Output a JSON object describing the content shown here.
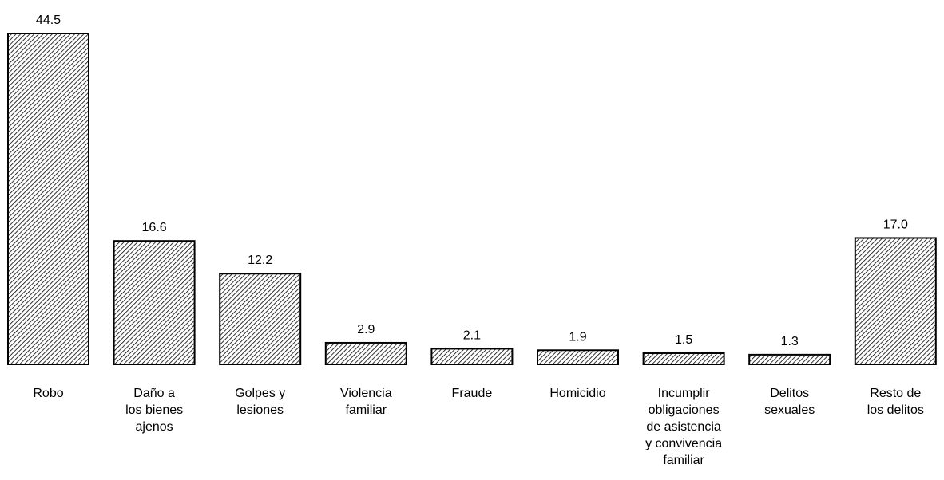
{
  "chart_data": {
    "type": "bar",
    "categories": [
      [
        "Robo"
      ],
      [
        "Daño a",
        "los bienes",
        "ajenos"
      ],
      [
        "Golpes y",
        "lesiones"
      ],
      [
        "Violencia",
        "familiar"
      ],
      [
        "Fraude"
      ],
      [
        "Homicidio"
      ],
      [
        "Incumplir",
        "obligaciones",
        "de asistencia",
        "y convivencia",
        "familiar"
      ],
      [
        "Delitos",
        "sexuales"
      ],
      [
        "Resto de",
        "los delitos"
      ]
    ],
    "values": [
      44.5,
      16.6,
      12.2,
      2.9,
      2.1,
      1.9,
      1.5,
      1.3,
      17.0
    ],
    "value_labels": [
      "44.5",
      "16.6",
      "12.2",
      "2.9",
      "2.1",
      "1.9",
      "1.5",
      "1.3",
      "17.0"
    ],
    "color": "#000000"
  }
}
